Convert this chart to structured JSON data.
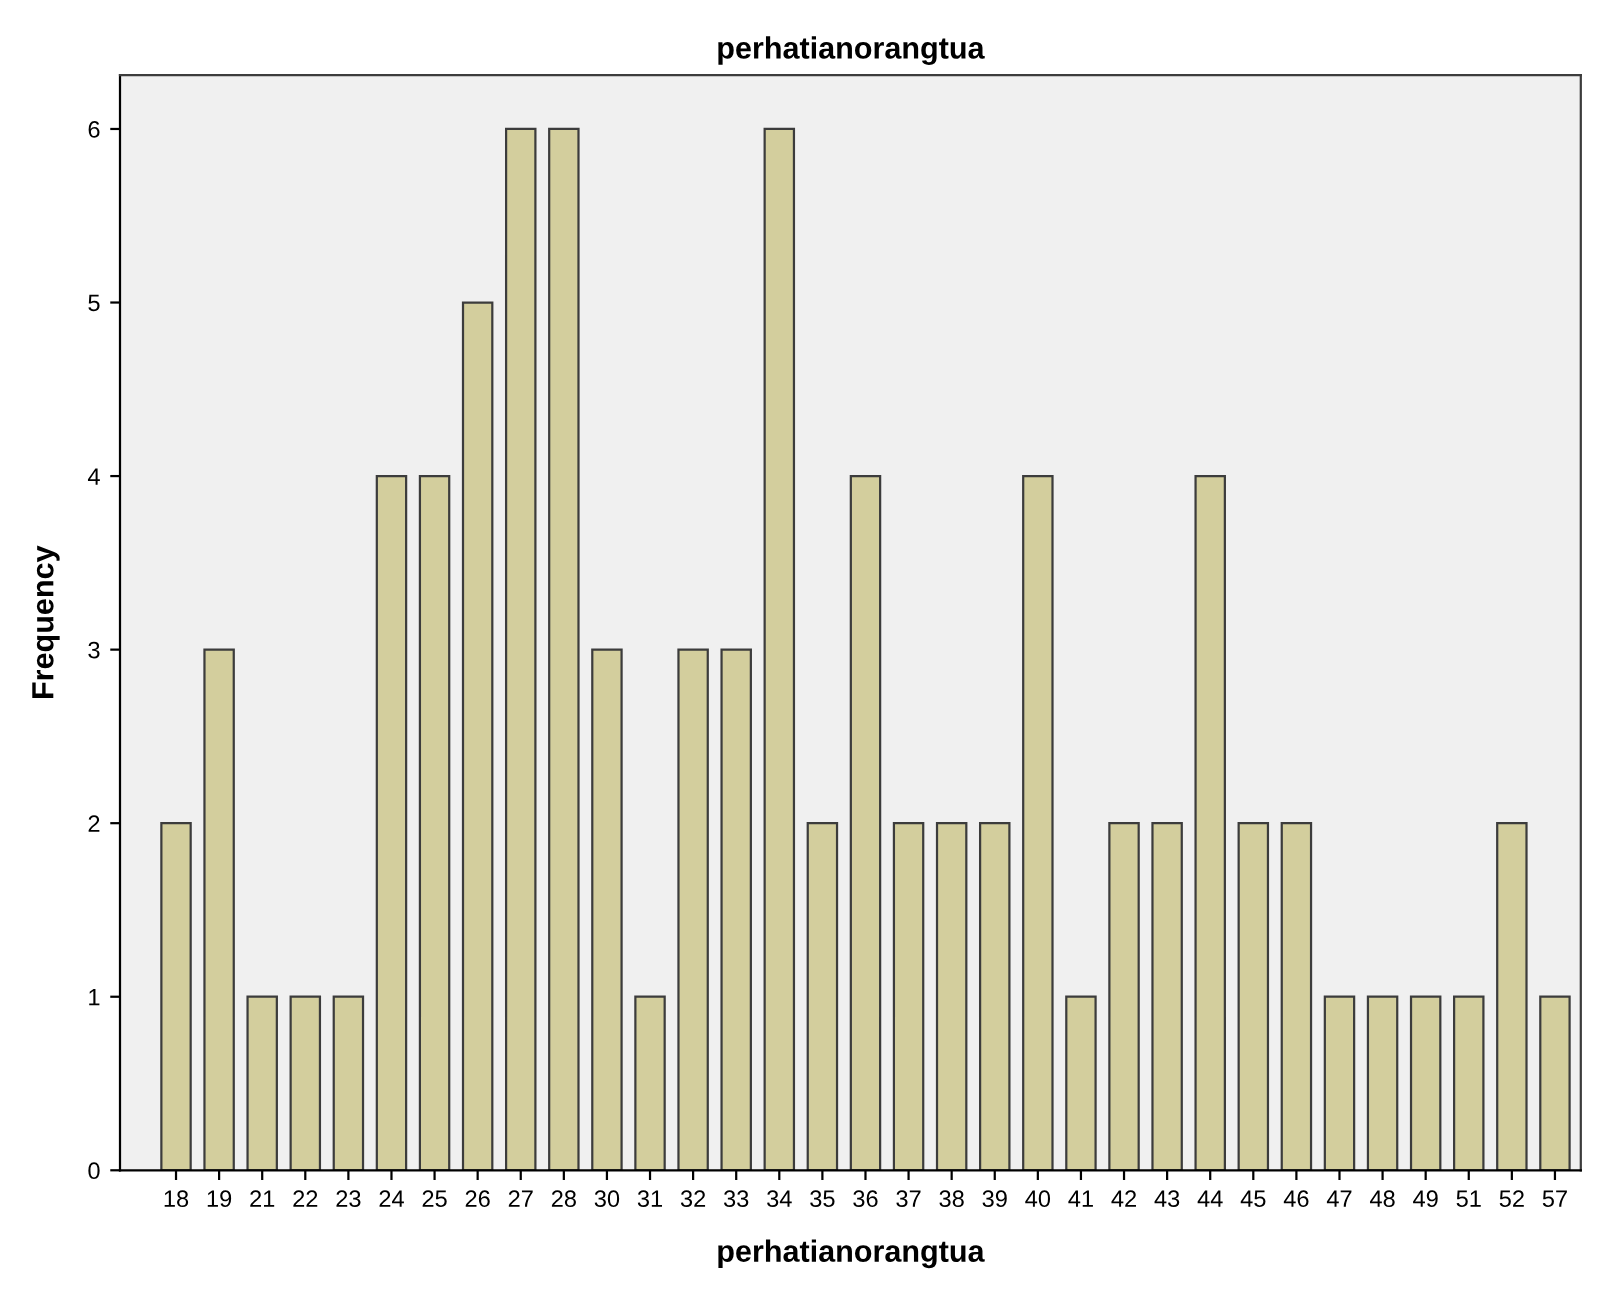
{
  "chart_data": {
    "type": "bar",
    "title": "perhatianorangtua",
    "xlabel": "perhatianorangtua",
    "ylabel": "Frequency",
    "categories": [
      "18",
      "19",
      "21",
      "22",
      "23",
      "24",
      "25",
      "26",
      "27",
      "28",
      "30",
      "31",
      "32",
      "33",
      "34",
      "35",
      "36",
      "37",
      "38",
      "39",
      "40",
      "41",
      "42",
      "43",
      "44",
      "45",
      "46",
      "47",
      "48",
      "49",
      "51",
      "52",
      "57"
    ],
    "values": [
      2,
      3,
      1,
      1,
      1,
      4,
      4,
      5,
      6,
      6,
      3,
      1,
      3,
      3,
      6,
      2,
      4,
      2,
      2,
      2,
      4,
      1,
      2,
      2,
      4,
      2,
      2,
      1,
      1,
      1,
      1,
      2,
      1
    ],
    "color": "#d3ce9d",
    "ylim": [
      0,
      6.31
    ],
    "yticks": [
      0,
      1,
      2,
      3,
      4,
      5,
      6
    ],
    "grid": false,
    "legend": false
  }
}
